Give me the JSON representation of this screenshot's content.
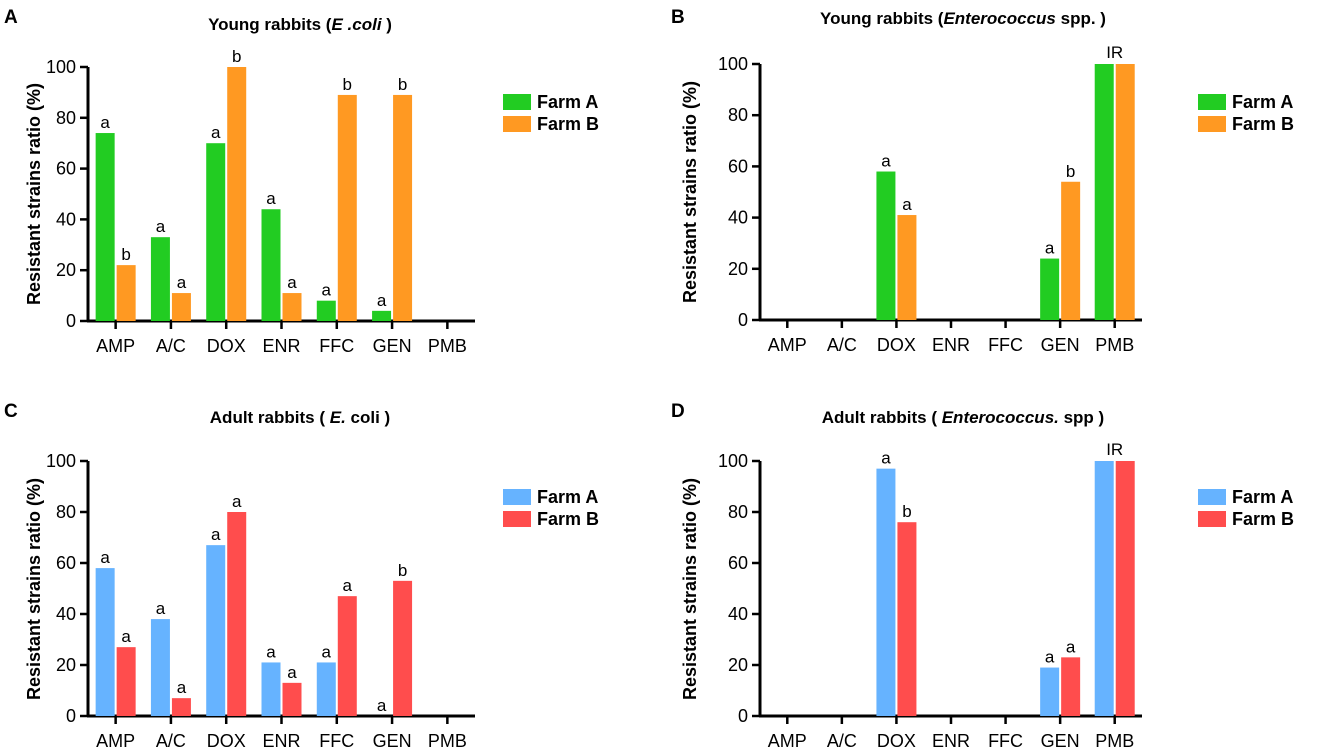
{
  "chart_data": [
    {
      "panel": "A",
      "type": "bar",
      "title": {
        "pre": "Young rabbits (",
        "italic": "E .coli",
        "post": " )"
      },
      "ylabel": "Resistant strains ratio (%)",
      "ylim": [
        0,
        100
      ],
      "yticks": [
        "0",
        "20",
        "40",
        "60",
        "80",
        "100"
      ],
      "categories": [
        "AMP",
        "A/C",
        "DOX",
        "ENR",
        "FFC",
        "GEN",
        "PMB"
      ],
      "series": [
        {
          "name": "Farm A",
          "color": "#22cc22",
          "values": [
            74,
            33,
            70,
            44,
            8,
            4,
            0
          ],
          "labels": [
            "a",
            "a",
            "a",
            "a",
            "a",
            "a",
            ""
          ]
        },
        {
          "name": "Farm B",
          "color": "#ff9922",
          "values": [
            22,
            11,
            100,
            11,
            89,
            89,
            0
          ],
          "labels": [
            "b",
            "a",
            "b",
            "a",
            "b",
            "b",
            ""
          ]
        }
      ],
      "group_labels": [
        "",
        "",
        "",
        "",
        "",
        "",
        ""
      ],
      "legend": "right"
    },
    {
      "panel": "B",
      "type": "bar",
      "title": {
        "pre": "Young rabbits (",
        "italic": "Enterococcus",
        "post": " spp. )"
      },
      "ylabel": "Resistant strains ratio (%)",
      "ylim": [
        0,
        100
      ],
      "yticks": [
        "0",
        "20",
        "40",
        "60",
        "80",
        "100"
      ],
      "categories": [
        "AMP",
        "A/C",
        "DOX",
        "ENR",
        "FFC",
        "GEN",
        "PMB"
      ],
      "series": [
        {
          "name": "Farm A",
          "color": "#22cc22",
          "values": [
            0,
            0,
            58,
            0,
            0,
            24,
            100
          ],
          "labels": [
            "",
            "",
            "a",
            "",
            "",
            "a",
            ""
          ]
        },
        {
          "name": "Farm B",
          "color": "#ff9922",
          "values": [
            0,
            0,
            41,
            0,
            0,
            54,
            100
          ],
          "labels": [
            "",
            "",
            "a",
            "",
            "",
            "b",
            ""
          ]
        }
      ],
      "group_labels": [
        "",
        "",
        "",
        "",
        "",
        "",
        "IR"
      ],
      "legend": "right"
    },
    {
      "panel": "C",
      "type": "bar",
      "title": {
        "pre": "Adult rabbits ( ",
        "italic": "E.",
        "post": " coli )"
      },
      "ylabel": "Resistant strains ratio (%)",
      "ylim": [
        0,
        100
      ],
      "yticks": [
        "0",
        "20",
        "40",
        "60",
        "80",
        "100"
      ],
      "categories": [
        "AMP",
        "A/C",
        "DOX",
        "ENR",
        "FFC",
        "GEN",
        "PMB"
      ],
      "series": [
        {
          "name": "Farm A",
          "color": "#66b3ff",
          "values": [
            58,
            38,
            67,
            21,
            21,
            0,
            0
          ],
          "labels": [
            "a",
            "a",
            "a",
            "a",
            "a",
            "a",
            ""
          ]
        },
        {
          "name": "Farm B",
          "color": "#ff4d4d",
          "values": [
            27,
            7,
            80,
            13,
            47,
            53,
            0
          ],
          "labels": [
            "a",
            "a",
            "a",
            "a",
            "a",
            "b",
            ""
          ]
        }
      ],
      "group_labels": [
        "",
        "",
        "",
        "",
        "",
        "",
        ""
      ],
      "legend": "right"
    },
    {
      "panel": "D",
      "type": "bar",
      "title": {
        "pre": "Adult rabbits ( ",
        "italic": "Enterococcus.",
        "post": " spp )"
      },
      "ylabel": "Resistant strains ratio (%)",
      "ylim": [
        0,
        100
      ],
      "yticks": [
        "0",
        "20",
        "40",
        "60",
        "80",
        "100"
      ],
      "categories": [
        "AMP",
        "A/C",
        "DOX",
        "ENR",
        "FFC",
        "GEN",
        "PMB"
      ],
      "series": [
        {
          "name": "Farm A",
          "color": "#66b3ff",
          "values": [
            0,
            0,
            97,
            0,
            0,
            19,
            100
          ],
          "labels": [
            "",
            "",
            "a",
            "",
            "",
            "a",
            ""
          ]
        },
        {
          "name": "Farm B",
          "color": "#ff4d4d",
          "values": [
            0,
            0,
            76,
            0,
            0,
            23,
            100
          ],
          "labels": [
            "",
            "",
            "b",
            "",
            "",
            "a",
            ""
          ]
        }
      ],
      "group_labels": [
        "",
        "",
        "",
        "",
        "",
        "",
        "IR"
      ],
      "legend": "right"
    }
  ]
}
